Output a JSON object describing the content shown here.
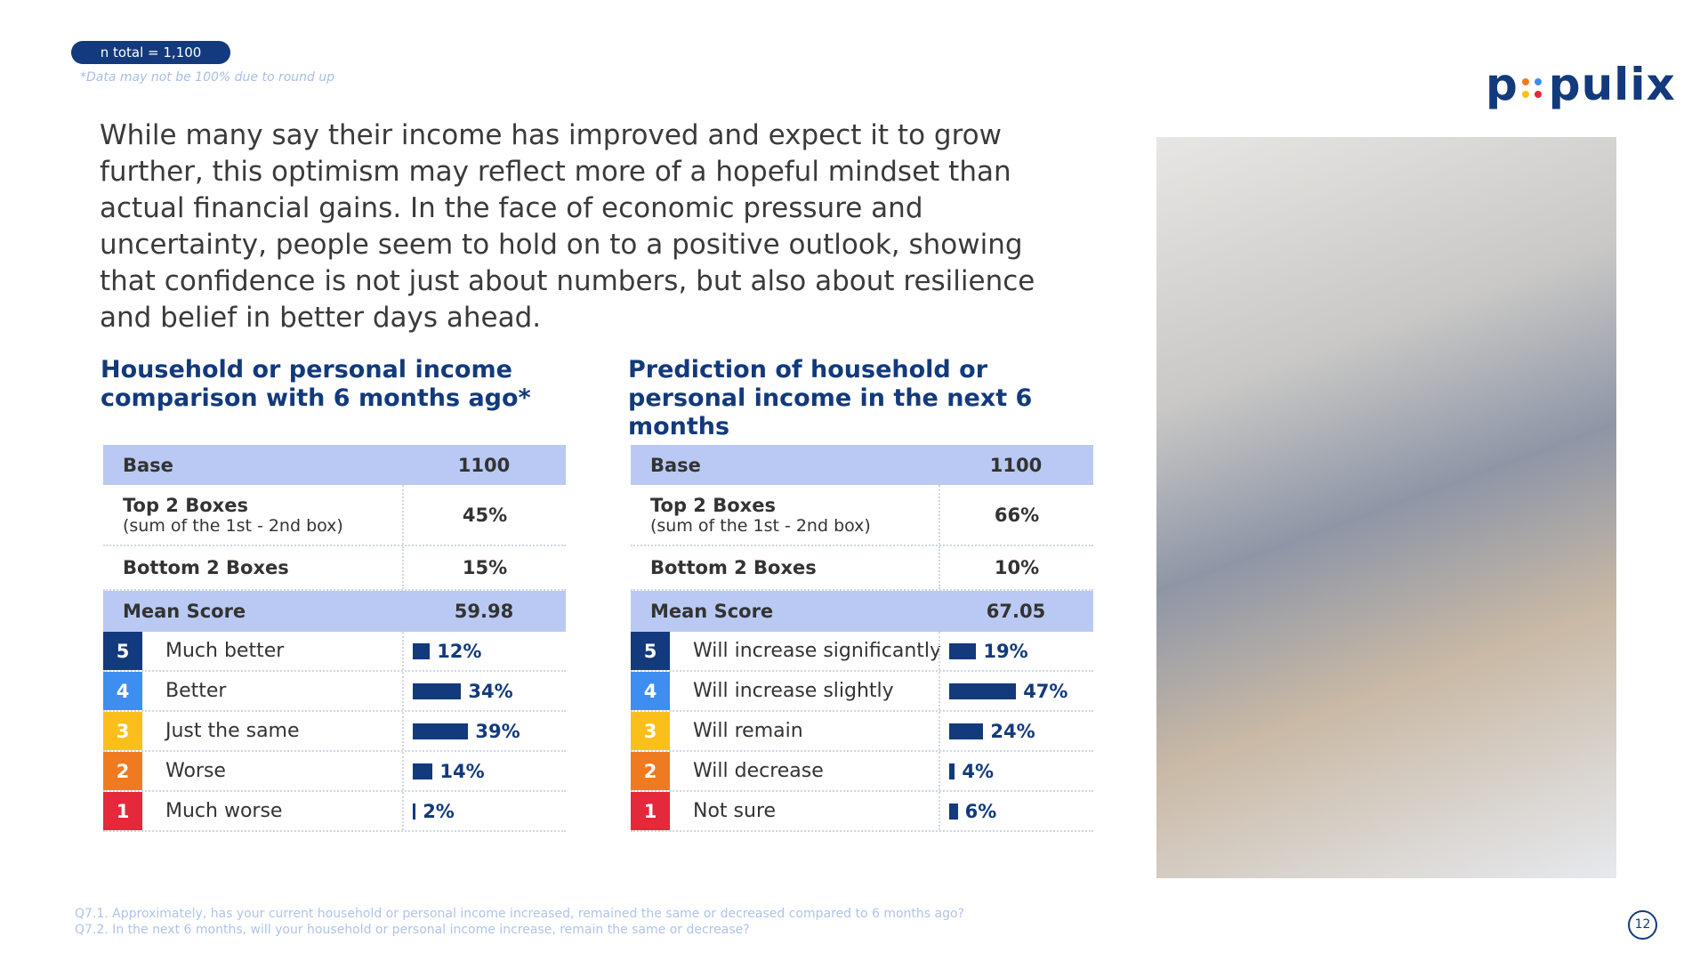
{
  "header": {
    "sample": "n total = 1,100",
    "note": "*Data may not be 100% due to round up",
    "logo_left": "p",
    "logo_right": "pulix"
  },
  "paragraph": "While many say their income has improved and expect it to grow further, this optimism may reflect more of a hopeful mindset than actual financial gains. In the face of economic pressure and uncertainty, people seem to hold on to a positive outlook, showing that confidence is not just about numbers, but also about resilience and belief in better days ahead.",
  "tables": [
    {
      "title": "Household or personal income comparison with 6 months ago*",
      "base": {
        "label": "Base",
        "value": "1100"
      },
      "top2": {
        "label": "Top 2 Boxes",
        "sub": "(sum of the 1st - 2nd box)",
        "value": "45%"
      },
      "bottom2": {
        "label": "Bottom 2 Boxes",
        "value": "15%"
      },
      "mean": {
        "label": "Mean Score",
        "value": "59.98"
      },
      "scale": [
        {
          "score": "5",
          "label": "Much better",
          "value": 12,
          "value_label": "12%"
        },
        {
          "score": "4",
          "label": "Better",
          "value": 34,
          "value_label": "34%"
        },
        {
          "score": "3",
          "label": "Just the same",
          "value": 39,
          "value_label": "39%"
        },
        {
          "score": "2",
          "label": "Worse",
          "value": 14,
          "value_label": "14%"
        },
        {
          "score": "1",
          "label": "Much worse",
          "value": 2,
          "value_label": "2%"
        }
      ]
    },
    {
      "title": "Prediction of household or personal income in the next 6 months",
      "base": {
        "label": "Base",
        "value": "1100"
      },
      "top2": {
        "label": "Top 2 Boxes",
        "sub": "(sum of the 1st - 2nd box)",
        "value": "66%"
      },
      "bottom2": {
        "label": "Bottom 2 Boxes",
        "value": "10%"
      },
      "mean": {
        "label": "Mean Score",
        "value": "67.05"
      },
      "scale": [
        {
          "score": "5",
          "label": "Will increase significantly",
          "value": 19,
          "value_label": "19%"
        },
        {
          "score": "4",
          "label": "Will increase slightly",
          "value": 47,
          "value_label": "47%"
        },
        {
          "score": "3",
          "label": "Will remain",
          "value": 24,
          "value_label": "24%"
        },
        {
          "score": "2",
          "label": "Will decrease",
          "value": 4,
          "value_label": "4%"
        },
        {
          "score": "1",
          "label": "Not sure",
          "value": 6,
          "value_label": "6%"
        }
      ]
    }
  ],
  "footnotes": [
    "Q7.1. Approximately, has your current household or personal income increased, remained the same or decreased compared to 6 months ago?",
    "Q7.2. In the next 6 months, will your household or personal income increase, remain the same or decrease?"
  ],
  "page_number": "12"
}
